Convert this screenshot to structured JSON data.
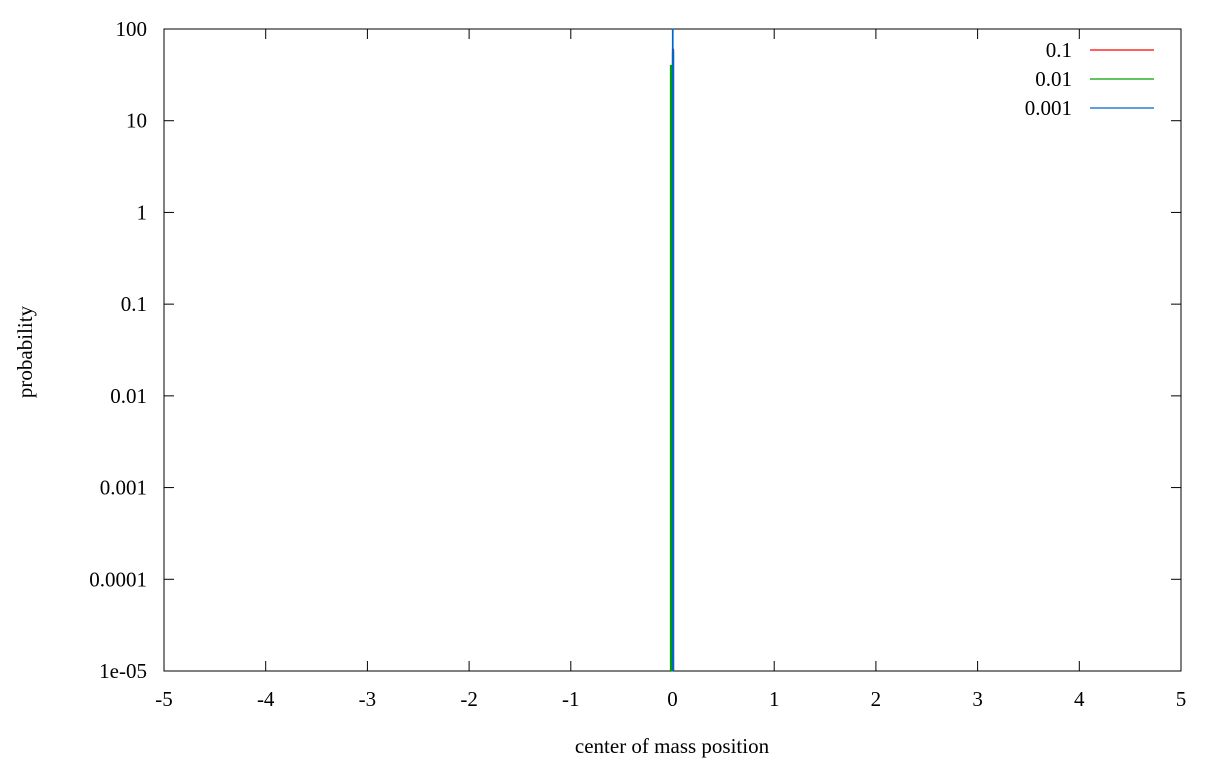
{
  "chart_data": {
    "type": "line",
    "title": "",
    "xlabel": "center of mass position",
    "ylabel": "probability",
    "xlim": [
      -5,
      5
    ],
    "ylim": [
      1e-05,
      100
    ],
    "yscale": "log",
    "grid": false,
    "legend_position": "top-right",
    "x_ticks": [
      {
        "value": -5,
        "label": "-5"
      },
      {
        "value": -4,
        "label": "-4"
      },
      {
        "value": -3,
        "label": "-3"
      },
      {
        "value": -2,
        "label": "-2"
      },
      {
        "value": -1,
        "label": "-1"
      },
      {
        "value": 0,
        "label": "0"
      },
      {
        "value": 1,
        "label": "1"
      },
      {
        "value": 2,
        "label": "2"
      },
      {
        "value": 3,
        "label": "3"
      },
      {
        "value": 4,
        "label": "4"
      },
      {
        "value": 5,
        "label": "5"
      }
    ],
    "y_ticks": [
      {
        "value": 100,
        "label": "100"
      },
      {
        "value": 10,
        "label": "10"
      },
      {
        "value": 1,
        "label": "1"
      },
      {
        "value": 0.1,
        "label": "0.1"
      },
      {
        "value": 0.01,
        "label": "0.01"
      },
      {
        "value": 0.001,
        "label": "0.001"
      },
      {
        "value": 0.0001,
        "label": "0.0001"
      },
      {
        "value": 1e-05,
        "label": "1e-05"
      }
    ],
    "series": [
      {
        "name": "0.1",
        "color": "#ff0000",
        "points": [
          [
            0.0,
            1e-05
          ],
          [
            0.0,
            60
          ],
          [
            0.01,
            60
          ],
          [
            0.01,
            1e-05
          ]
        ]
      },
      {
        "name": "0.01",
        "color": "#00a000",
        "points": [
          [
            -0.02,
            1e-05
          ],
          [
            -0.02,
            40
          ],
          [
            -0.01,
            40
          ],
          [
            -0.01,
            1e-05
          ],
          [
            0.0,
            1e-05
          ],
          [
            0.0,
            55
          ],
          [
            0.01,
            55
          ],
          [
            0.01,
            1e-05
          ]
        ]
      },
      {
        "name": "0.001",
        "color": "#0066cc",
        "points": [
          [
            0.0,
            1e-05
          ],
          [
            0.0,
            100
          ],
          [
            0.005,
            100
          ],
          [
            0.005,
            58
          ],
          [
            0.01,
            58
          ],
          [
            0.01,
            1e-05
          ]
        ]
      }
    ]
  }
}
